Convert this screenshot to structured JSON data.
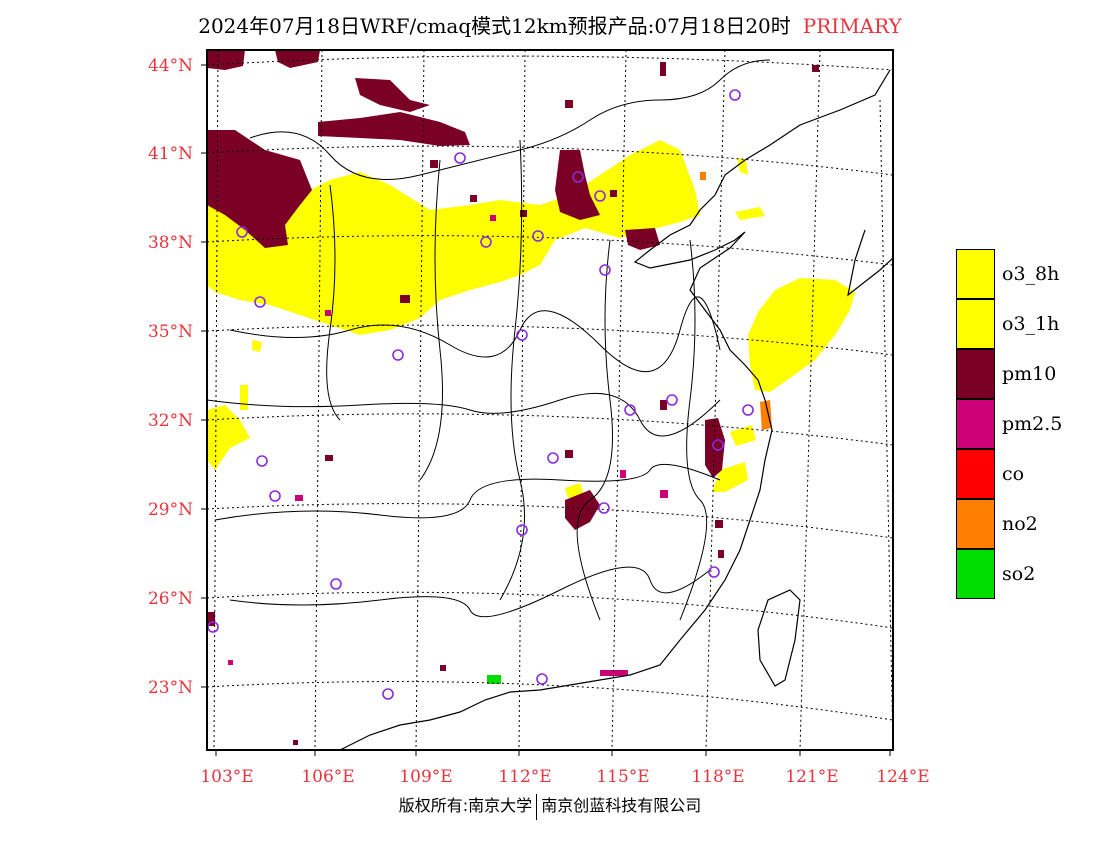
{
  "title": {
    "main": "2024年07月18日WRF/cmaq模式12km预报产品:07月18日20时",
    "tag": "PRIMARY"
  },
  "colors": {
    "label_red": "#e8343c",
    "o3_8h": "#ffff00",
    "o3_1h": "#ffff00",
    "pm10": "#7a0026",
    "pm25": "#cc0077",
    "co": "#ff0000",
    "no2": "#ff7f00",
    "so2": "#00dd00",
    "station_ring": "#8a2be2"
  },
  "map": {
    "lat_labels": [
      "44°N",
      "41°N",
      "38°N",
      "35°N",
      "32°N",
      "29°N",
      "26°N",
      "23°N"
    ],
    "lon_labels": [
      "103°E",
      "106°E",
      "109°E",
      "112°E",
      "115°E",
      "118°E",
      "121°E",
      "124°E"
    ]
  },
  "legend": [
    {
      "label": "o3_8h",
      "color": "#ffff00"
    },
    {
      "label": "o3_1h",
      "color": "#ffff00"
    },
    {
      "label": "pm10",
      "color": "#7a0026"
    },
    {
      "label": "pm2.5",
      "color": "#cc0077"
    },
    {
      "label": "co",
      "color": "#ff0000"
    },
    {
      "label": "no2",
      "color": "#ff7f00"
    },
    {
      "label": "so2",
      "color": "#00dd00"
    }
  ],
  "footer": {
    "left": "版权所有:南京大学",
    "right": "南京创蓝科技有限公司"
  }
}
